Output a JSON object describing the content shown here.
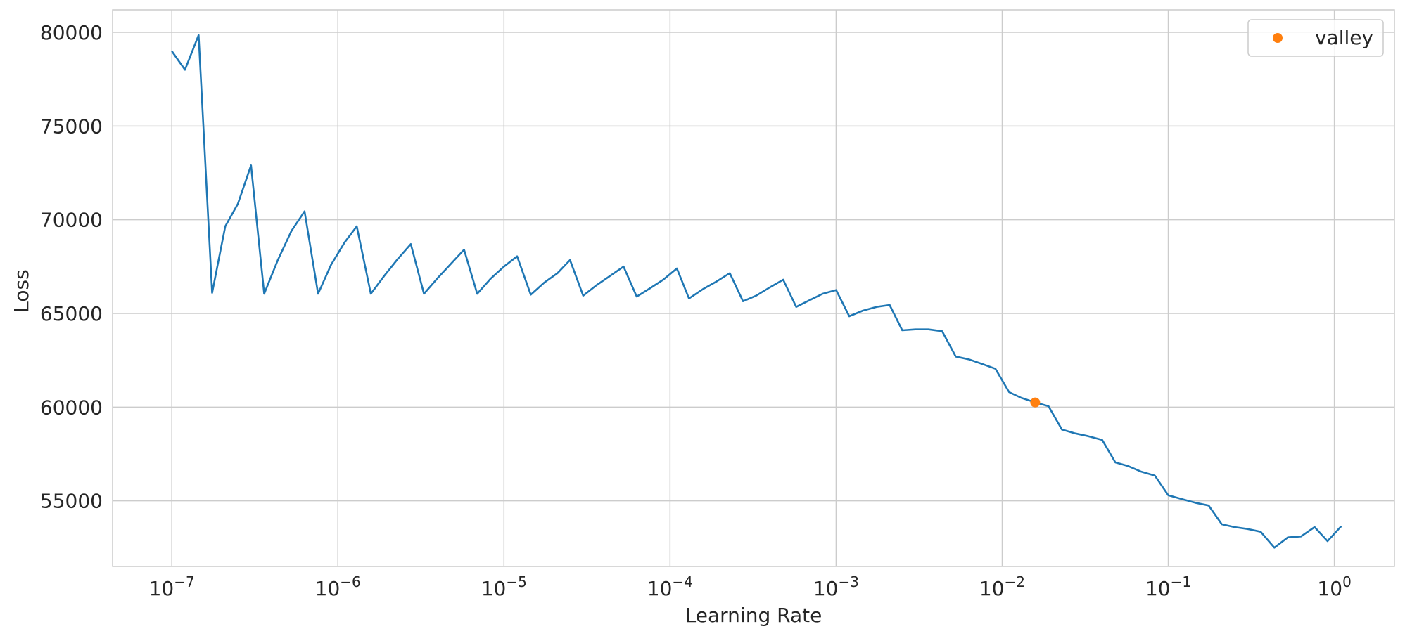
{
  "chart_data": {
    "type": "line",
    "title": "",
    "xlabel": "Learning Rate",
    "ylabel": "Loss",
    "x_scale": "log",
    "xlim": [
      4.4e-08,
      2.3
    ],
    "ylim": [
      51500,
      81200
    ],
    "grid": true,
    "x_ticks": [
      {
        "value": 1e-07,
        "base": "10",
        "exp": "−7"
      },
      {
        "value": 1e-06,
        "base": "10",
        "exp": "−6"
      },
      {
        "value": 1e-05,
        "base": "10",
        "exp": "−5"
      },
      {
        "value": 0.0001,
        "base": "10",
        "exp": "−4"
      },
      {
        "value": 0.001,
        "base": "10",
        "exp": "−3"
      },
      {
        "value": 0.01,
        "base": "10",
        "exp": "−2"
      },
      {
        "value": 0.1,
        "base": "10",
        "exp": "−1"
      },
      {
        "value": 1,
        "base": "10",
        "exp": "0"
      }
    ],
    "y_ticks": [
      {
        "value": 55000,
        "label": "55000"
      },
      {
        "value": 60000,
        "label": "60000"
      },
      {
        "value": 65000,
        "label": "65000"
      },
      {
        "value": 70000,
        "label": "70000"
      },
      {
        "value": 75000,
        "label": "75000"
      },
      {
        "value": 80000,
        "label": "80000"
      }
    ],
    "legend": {
      "position": "top-right",
      "entries": [
        {
          "label": "valley",
          "color": "#ff7f0e",
          "marker": "circle"
        }
      ]
    },
    "series": [
      {
        "color": "#1f77b4",
        "points": [
          [
            1e-07,
            79000
          ],
          [
            1.2e-07,
            78000
          ],
          [
            1.45e-07,
            79850
          ],
          [
            1.75e-07,
            66100
          ],
          [
            2.1e-07,
            69650
          ],
          [
            2.5e-07,
            70850
          ],
          [
            3e-07,
            72900
          ],
          [
            3.6e-07,
            66050
          ],
          [
            4.35e-07,
            67850
          ],
          [
            5.25e-07,
            69400
          ],
          [
            6.3e-07,
            70450
          ],
          [
            7.6e-07,
            66050
          ],
          [
            9.1e-07,
            67600
          ],
          [
            1.1e-06,
            68800
          ],
          [
            1.3e-06,
            69650
          ],
          [
            1.58e-06,
            66050
          ],
          [
            1.9e-06,
            67000
          ],
          [
            2.29e-06,
            67900
          ],
          [
            2.75e-06,
            68700
          ],
          [
            3.3e-06,
            66050
          ],
          [
            4e-06,
            66900
          ],
          [
            4.8e-06,
            67650
          ],
          [
            5.75e-06,
            68400
          ],
          [
            6.9e-06,
            66050
          ],
          [
            8.3e-06,
            66850
          ],
          [
            1e-05,
            67500
          ],
          [
            1.2e-05,
            68050
          ],
          [
            1.45e-05,
            66000
          ],
          [
            1.75e-05,
            66650
          ],
          [
            2.1e-05,
            67150
          ],
          [
            2.5e-05,
            67850
          ],
          [
            3e-05,
            65950
          ],
          [
            3.6e-05,
            66500
          ],
          [
            4.35e-05,
            67000
          ],
          [
            5.25e-05,
            67500
          ],
          [
            6.3e-05,
            65900
          ],
          [
            7.6e-05,
            66350
          ],
          [
            9.1e-05,
            66800
          ],
          [
            0.00011,
            67400
          ],
          [
            0.00013,
            65800
          ],
          [
            0.000158,
            66300
          ],
          [
            0.00019,
            66700
          ],
          [
            0.000229,
            67150
          ],
          [
            0.000275,
            65650
          ],
          [
            0.00033,
            65950
          ],
          [
            0.0004,
            66400
          ],
          [
            0.00048,
            66800
          ],
          [
            0.000575,
            65350
          ],
          [
            0.00069,
            65700
          ],
          [
            0.00083,
            66050
          ],
          [
            0.001,
            66250
          ],
          [
            0.0012,
            64850
          ],
          [
            0.00145,
            65150
          ],
          [
            0.00175,
            65350
          ],
          [
            0.0021,
            65450
          ],
          [
            0.0025,
            64100
          ],
          [
            0.003,
            64150
          ],
          [
            0.0036,
            64150
          ],
          [
            0.00435,
            64050
          ],
          [
            0.00525,
            62700
          ],
          [
            0.0063,
            62550
          ],
          [
            0.0076,
            62300
          ],
          [
            0.0091,
            62050
          ],
          [
            0.011,
            60800
          ],
          [
            0.013,
            60500
          ],
          [
            0.0158,
            60250
          ],
          [
            0.019,
            60050
          ],
          [
            0.0229,
            58800
          ],
          [
            0.0275,
            58600
          ],
          [
            0.033,
            58450
          ],
          [
            0.04,
            58250
          ],
          [
            0.048,
            57050
          ],
          [
            0.0575,
            56850
          ],
          [
            0.069,
            56550
          ],
          [
            0.083,
            56350
          ],
          [
            0.1,
            55300
          ],
          [
            0.12,
            55100
          ],
          [
            0.145,
            54900
          ],
          [
            0.175,
            54750
          ],
          [
            0.21,
            53750
          ],
          [
            0.25,
            53600
          ],
          [
            0.3,
            53500
          ],
          [
            0.36,
            53350
          ],
          [
            0.435,
            52500
          ],
          [
            0.525,
            53050
          ],
          [
            0.63,
            53100
          ],
          [
            0.76,
            53600
          ],
          [
            0.91,
            52850
          ],
          [
            1.1,
            53650
          ]
        ]
      }
    ],
    "valley_point": {
      "x": 0.0158,
      "y": 60250,
      "color": "#ff7f0e"
    }
  }
}
